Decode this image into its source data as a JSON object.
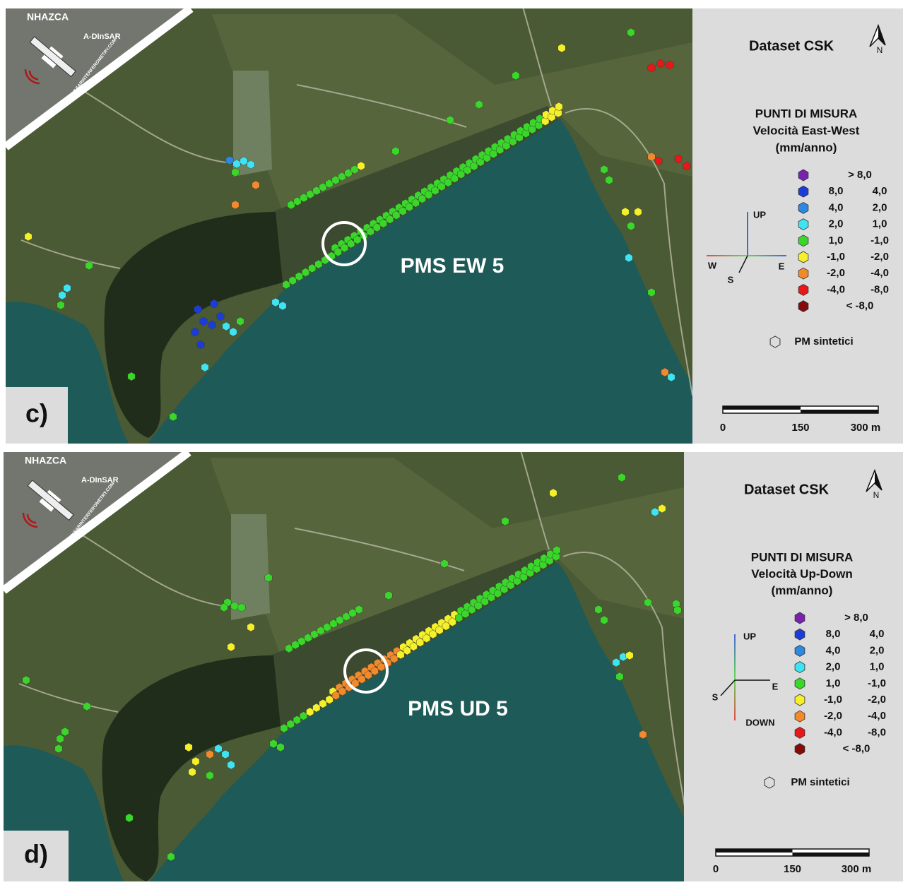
{
  "panels": [
    {
      "label": "c)",
      "logo": {
        "brand": "NHAZCA",
        "product": "A-DInSAR",
        "url": "WWW.SARINTERFEROMETRY.COM"
      },
      "annotation": "PMS EW 5",
      "legend": {
        "dataset": "Dataset CSK",
        "north": "N",
        "title": "PUNTI DI MISURA",
        "subtitle": "Velocità East-West",
        "unit": "(mm/anno)",
        "classes": [
          {
            "label": "> 8,0",
            "color": "#7a22b0"
          },
          {
            "from": "8,0",
            "to": "4,0",
            "color": "#1c3cd8"
          },
          {
            "from": "4,0",
            "to": "2,0",
            "color": "#2e88e0"
          },
          {
            "from": "2,0",
            "to": "1,0",
            "color": "#3fe4f2"
          },
          {
            "from": "1,0",
            "to": "-1,0",
            "color": "#3ad62a"
          },
          {
            "from": "-1,0",
            "to": "-2,0",
            "color": "#f4f02a"
          },
          {
            "from": "-2,0",
            "to": "-4,0",
            "color": "#f08a2c"
          },
          {
            "from": "-4,0",
            "to": "-8,0",
            "color": "#e81818"
          },
          {
            "label": "< -8,0",
            "color": "#860a0a"
          }
        ],
        "axes": [
          "UP",
          "W",
          "E",
          "S"
        ],
        "synthetic": "PM sintetici",
        "scale": [
          "0",
          "150",
          "300 m"
        ]
      }
    },
    {
      "label": "d)",
      "logo": {
        "brand": "NHAZCA",
        "product": "A-DInSAR",
        "url": "WWW.SARINTERFEROMETRY.COM"
      },
      "annotation": "PMS UD 5",
      "legend": {
        "dataset": "Dataset CSK",
        "north": "N",
        "title": "PUNTI DI MISURA",
        "subtitle": "Velocità Up-Down",
        "unit": "(mm/anno)",
        "classes": [
          {
            "label": "> 8,0",
            "color": "#7a22b0"
          },
          {
            "from": "8,0",
            "to": "4,0",
            "color": "#1c3cd8"
          },
          {
            "from": "4,0",
            "to": "2,0",
            "color": "#2e88e0"
          },
          {
            "from": "2,0",
            "to": "1,0",
            "color": "#3fe4f2"
          },
          {
            "from": "1,0",
            "to": "-1,0",
            "color": "#3ad62a"
          },
          {
            "from": "-1,0",
            "to": "-2,0",
            "color": "#f4f02a"
          },
          {
            "from": "-2,0",
            "to": "-4,0",
            "color": "#f08a2c"
          },
          {
            "from": "-4,0",
            "to": "-8,0",
            "color": "#e81818"
          },
          {
            "label": "< -8,0",
            "color": "#860a0a"
          }
        ],
        "axes": [
          "UP",
          "S",
          "E",
          "DOWN"
        ],
        "synthetic": "PM sintetici",
        "scale": [
          "0",
          "150",
          "300 m"
        ]
      }
    }
  ]
}
